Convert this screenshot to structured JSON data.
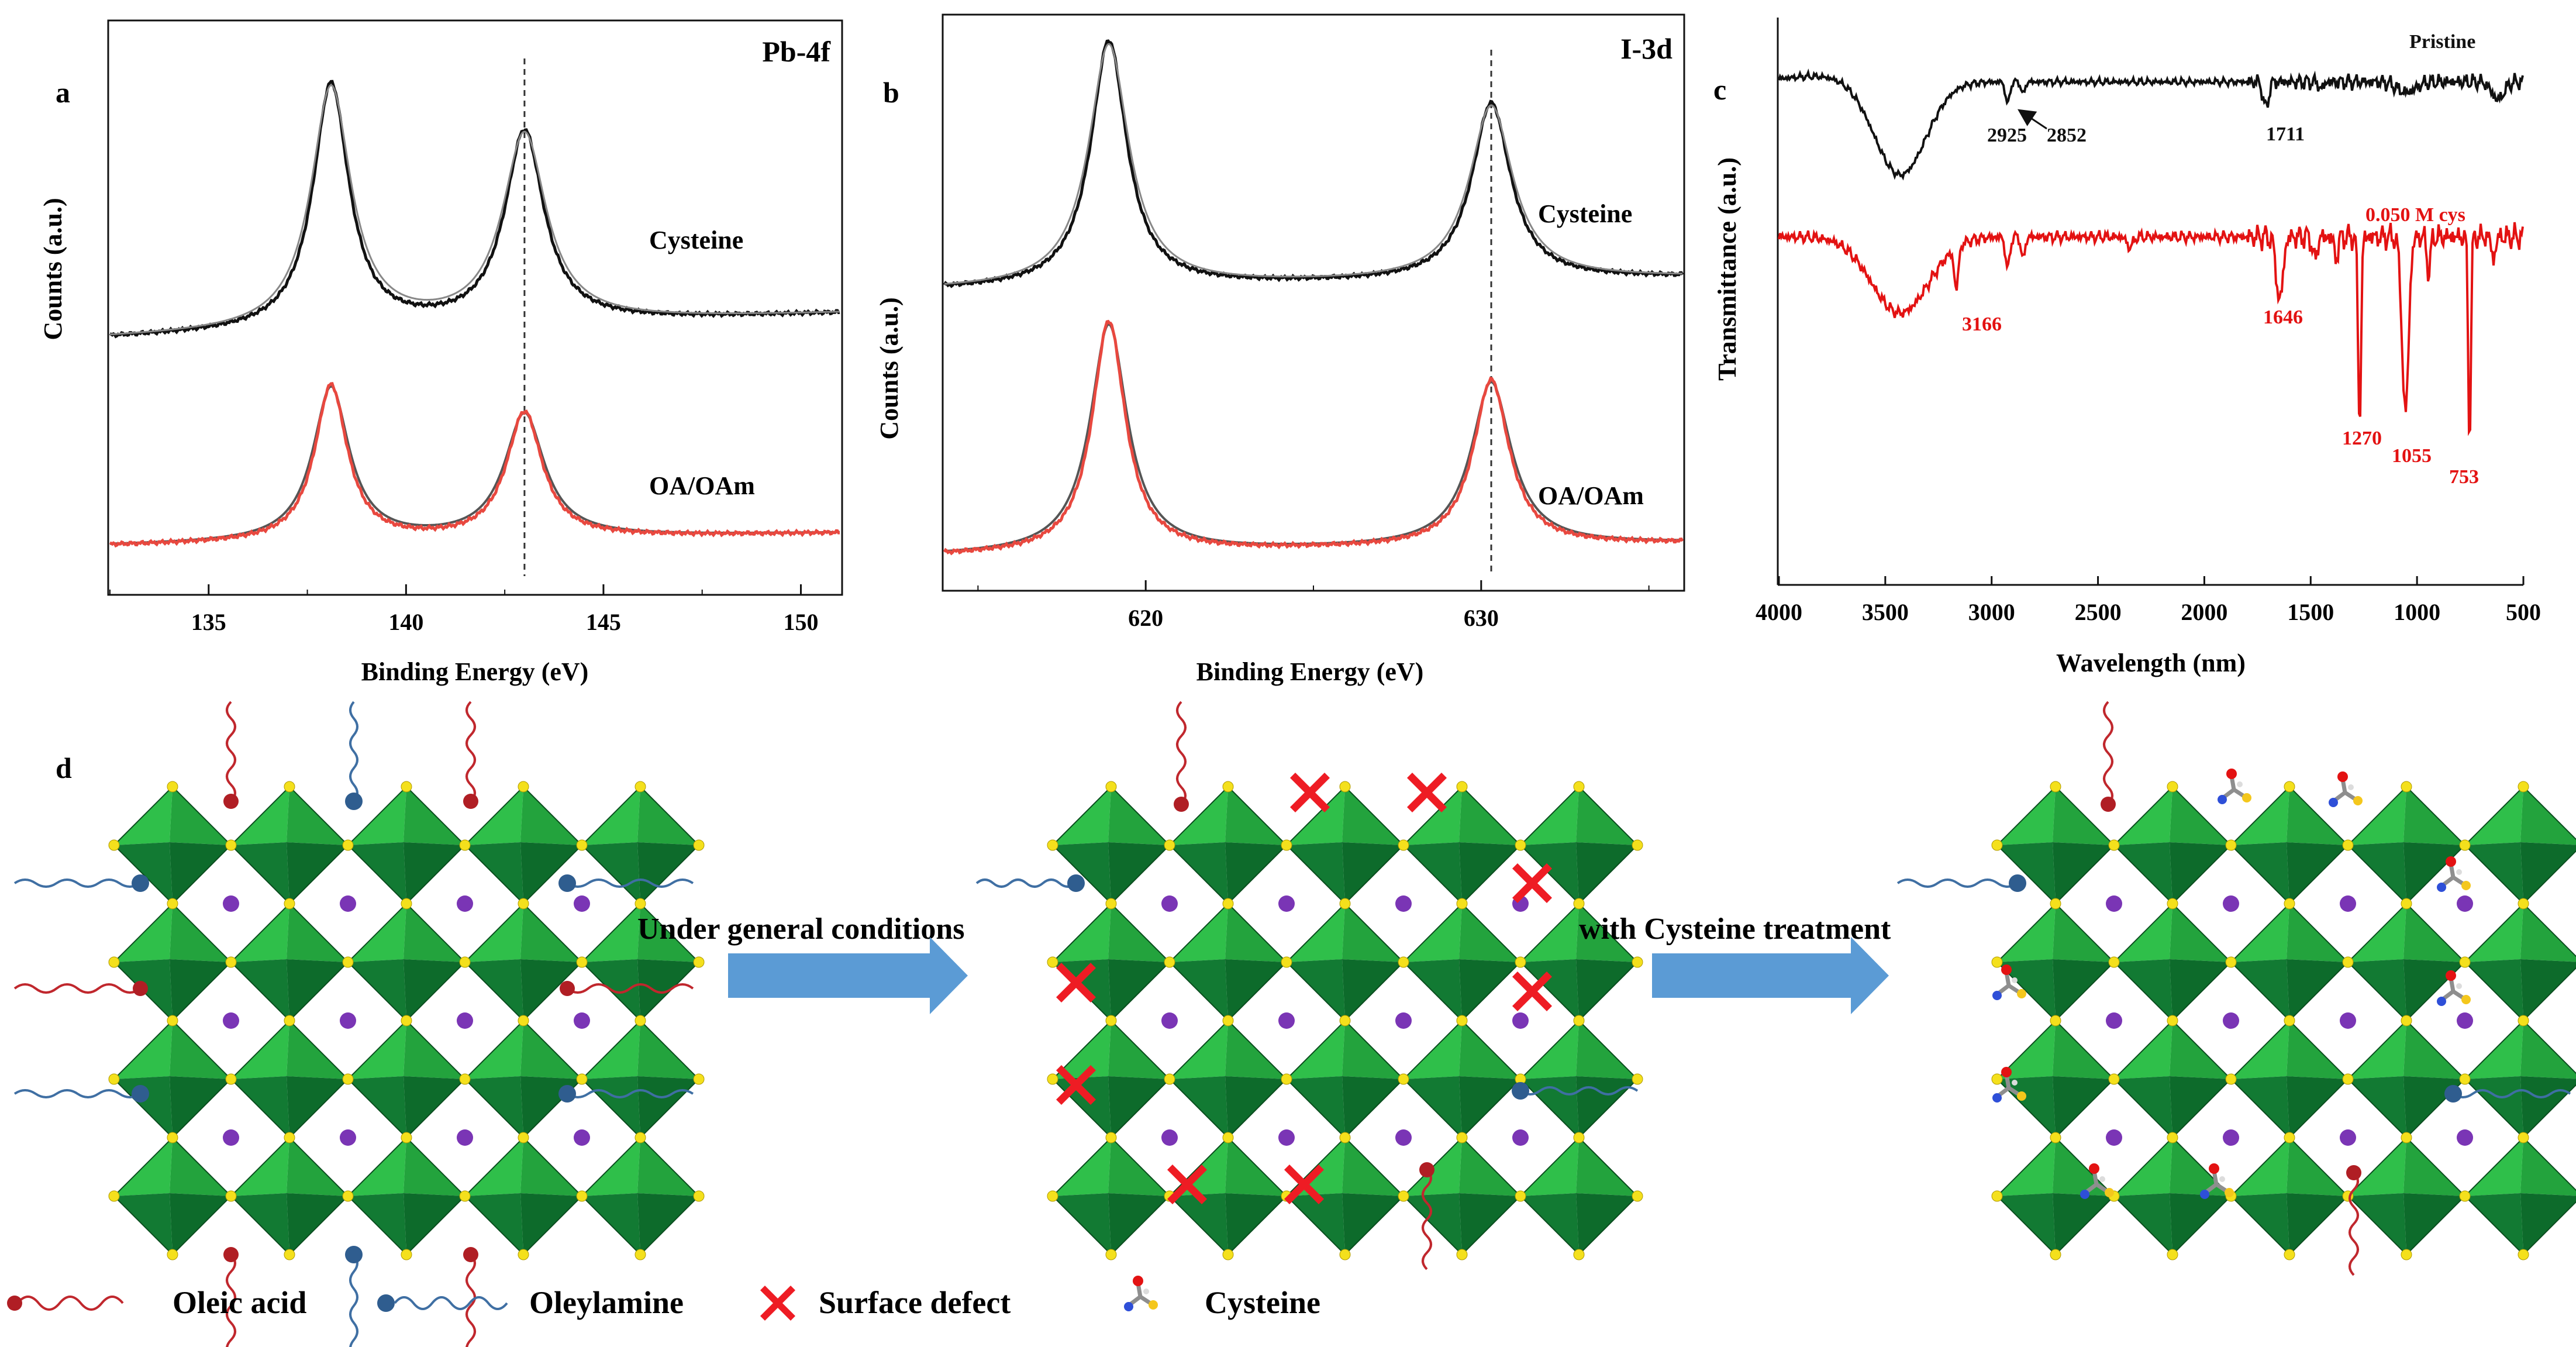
{
  "chart_data": [
    {
      "id": "a",
      "panel_label": "a",
      "type": "line",
      "title": "Pb-4f",
      "xlabel": "Binding Energy (eV)",
      "ylabel": "Counts (a.u.)",
      "xlim": [
        132.5,
        151
      ],
      "xticks": [
        135,
        140,
        145,
        150
      ],
      "xtick_labels": [
        "135",
        "140",
        "145",
        "150"
      ],
      "reference_line_x": 143.0,
      "series": [
        {
          "name": "Cysteine",
          "color": "#111111",
          "offset": 1.0,
          "baseline": 0.1,
          "peaks": [
            {
              "x": 138.1,
              "height": 1.0,
              "width": 0.55
            },
            {
              "x": 143.0,
              "height": 0.78,
              "width": 0.6
            }
          ]
        },
        {
          "name": "OA/OAm",
          "color": "#e8483f",
          "offset": 0.0,
          "baseline": 0.05,
          "peaks": [
            {
              "x": 138.1,
              "height": 0.62,
              "width": 0.5
            },
            {
              "x": 143.0,
              "height": 0.5,
              "width": 0.55
            }
          ]
        }
      ]
    },
    {
      "id": "b",
      "panel_label": "b",
      "type": "line",
      "title": "I-3d",
      "xlabel": "Binding Energy (eV)",
      "ylabel": "Counts (a.u.)",
      "xlim": [
        614,
        636
      ],
      "xticks": [
        620,
        630
      ],
      "xtick_labels": [
        "620",
        "630"
      ],
      "reference_line_x": 630.3,
      "series": [
        {
          "name": "Cysteine",
          "color": "#111111",
          "offset": 1.0,
          "baseline": 0.05,
          "peaks": [
            {
              "x": 618.9,
              "height": 1.0,
              "width": 0.65
            },
            {
              "x": 630.3,
              "height": 0.72,
              "width": 0.7
            }
          ]
        },
        {
          "name": "OA/OAm",
          "color": "#e8483f",
          "offset": 0.0,
          "baseline": 0.05,
          "peaks": [
            {
              "x": 618.9,
              "height": 0.92,
              "width": 0.6
            },
            {
              "x": 630.3,
              "height": 0.66,
              "width": 0.65
            }
          ]
        }
      ]
    },
    {
      "id": "c",
      "panel_label": "c",
      "type": "line",
      "title": "",
      "xlabel": "Wavelength (nm)",
      "ylabel": "Transmittance (a.u.)",
      "xlim": [
        4000,
        500
      ],
      "xticks": [
        4000,
        3500,
        3000,
        2500,
        2000,
        1500,
        1000,
        500
      ],
      "xtick_labels": [
        "4000",
        "3500",
        "3000",
        "2500",
        "2000",
        "1500",
        "1000",
        "500"
      ],
      "series": [
        {
          "name": "Pristine",
          "color": "#111111",
          "label": "Pristine",
          "peaks": [
            3430,
            2925,
            2852,
            1711
          ],
          "peak_labels": [
            "2925",
            "2852",
            "1711"
          ]
        },
        {
          "name": "0.050 M cys",
          "color": "#e31212",
          "label": "0.050 M cys",
          "peaks": [
            3430,
            3166,
            1646,
            1270,
            1055,
            753
          ],
          "peak_labels": [
            "3166",
            "1646",
            "1270",
            "1055",
            "753"
          ]
        }
      ]
    }
  ],
  "diagram": {
    "panel_label": "d",
    "steps": [
      "Under general conditions",
      "with Cysteine treatment"
    ],
    "legend": [
      {
        "label": "Oleic acid",
        "icon": "oleic-acid-ligand-icon",
        "color": "#c0272d"
      },
      {
        "label": "Oleylamine",
        "icon": "oleylamine-ligand-icon",
        "color": "#3f6fa3"
      },
      {
        "label": "Surface defect",
        "icon": "surface-defect-x-icon",
        "color": "#ee1c24"
      },
      {
        "label": "Cysteine",
        "icon": "cysteine-molecule-icon",
        "color": "#8e8e8e"
      }
    ],
    "colors": {
      "octahedron_light": "#2fbf4a",
      "octahedron_dark": "#0d6b2b",
      "halide": "#f4e01c",
      "cation": "#7a35b5",
      "arrow": "#5b9bd5"
    }
  }
}
